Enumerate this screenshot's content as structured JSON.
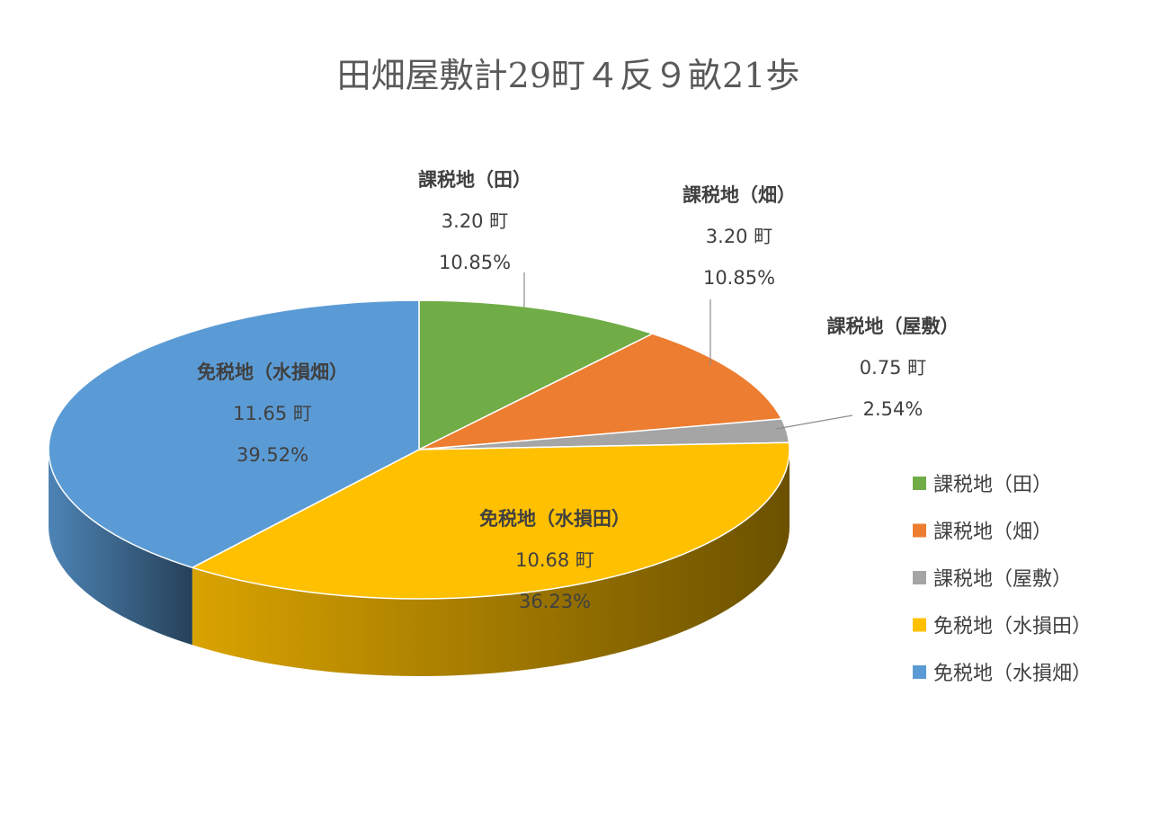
{
  "chart_data": {
    "type": "pie",
    "title": "田畑屋敷計29町４反９畝21歩",
    "unit": "町",
    "legend_position": "right",
    "slices": [
      {
        "name": "課税地（田）",
        "value": 3.2,
        "value_label": "3.20 町",
        "percent": 10.85,
        "percent_label": "10.85%",
        "color": "#70ad47"
      },
      {
        "name": "課税地（畑）",
        "value": 3.2,
        "value_label": "3.20 町",
        "percent": 10.85,
        "percent_label": "10.85%",
        "color": "#ed7d31"
      },
      {
        "name": "課税地（屋敷）",
        "value": 0.75,
        "value_label": "0.75 町",
        "percent": 2.54,
        "percent_label": "2.54%",
        "color": "#a5a5a5"
      },
      {
        "name": "免税地（水損田）",
        "value": 10.68,
        "value_label": "10.68 町",
        "percent": 36.23,
        "percent_label": "36.23%",
        "color": "#ffc000"
      },
      {
        "name": "免税地（水損畑）",
        "value": 11.65,
        "value_label": "11.65 町",
        "percent": 39.52,
        "percent_label": "39.52%",
        "color": "#5b9bd5"
      }
    ]
  }
}
